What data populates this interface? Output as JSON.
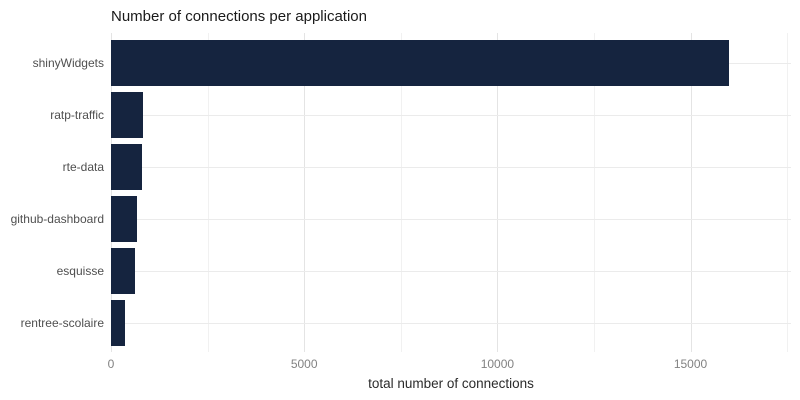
{
  "chart_data": {
    "type": "bar",
    "orientation": "horizontal",
    "title": "Number of connections per application",
    "xlabel": "total number of connections",
    "ylabel": "",
    "categories": [
      "shinyWidgets",
      "ratp-traffic",
      "rte-data",
      "github-dashboard",
      "esquisse",
      "rentree-scolaire"
    ],
    "values": [
      16000,
      820,
      790,
      660,
      630,
      350
    ],
    "xlim": [
      0,
      17600
    ],
    "xticks_major": [
      0,
      5000,
      10000,
      15000
    ],
    "xtick_labels": [
      "0",
      "5000",
      "10000",
      "15000"
    ],
    "xticks_minor": [
      2500,
      7500,
      12500,
      17500
    ],
    "grid": "on",
    "legend": "none"
  },
  "colors": {
    "bar": "#15243f",
    "grid_major": "#e4e4e4",
    "grid_minor": "#f1f1f1",
    "grid_horizontal": "#ebebeb",
    "title_text": "#1a1a1a",
    "category_label_text": "#4f4f4f",
    "tick_label_text": "#828282",
    "axis_title_text": "#2b2b2b",
    "background": "#ffffff"
  }
}
